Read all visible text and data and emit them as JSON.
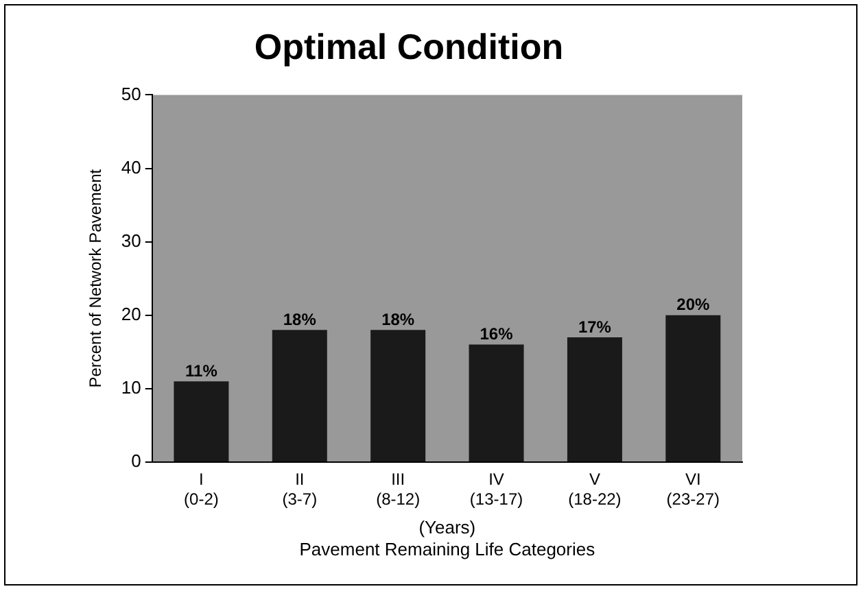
{
  "chart_data": {
    "type": "bar",
    "title": "Optimal Condition",
    "xlabel": "(Years)\nPavement Remaining Life Categories",
    "ylabel": "Percent of Network Pavement",
    "categories": [
      "I\n(0-2)",
      "II\n(3-7)",
      "III\n(8-12)",
      "IV\n(13-17)",
      "V\n(18-22)",
      "VI\n(23-27)"
    ],
    "values": [
      11,
      18,
      18,
      16,
      17,
      20
    ],
    "value_labels": [
      "11%",
      "18%",
      "18%",
      "16%",
      "17%",
      "20%"
    ],
    "color": "#1a1a1a",
    "ylim": [
      0,
      50
    ],
    "yticks": [
      0,
      10,
      20,
      30,
      40,
      50
    ],
    "grid": false,
    "legend": false
  }
}
